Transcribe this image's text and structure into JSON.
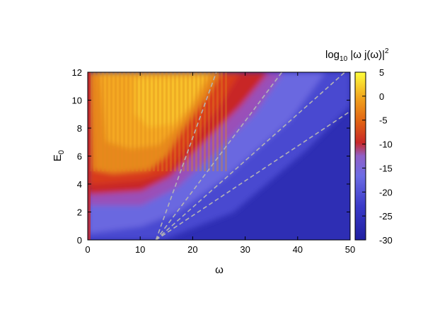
{
  "chart_data": {
    "type": "heatmap",
    "title": "",
    "xlabel": "ω",
    "ylabel_main": "E",
    "ylabel_sub": "0",
    "xlim": [
      0,
      50
    ],
    "ylim": [
      0,
      12
    ],
    "x_ticks": [
      "0",
      "10",
      "20",
      "30",
      "40",
      "50"
    ],
    "y_ticks": [
      "0",
      "2",
      "4",
      "6",
      "8",
      "10",
      "12"
    ],
    "colorbar": {
      "label_prefix": "log",
      "label_sub": "10",
      "label_body": " |ω j(ω)|",
      "label_sup": "2",
      "range": [
        -30,
        5
      ],
      "ticks": [
        "5",
        "0",
        "-5",
        "-10",
        "-15",
        "-20",
        "-25",
        "-30"
      ],
      "palette": [
        "#1f1f9f",
        "#3c3cc8",
        "#6a6ae0",
        "#8a6ad8",
        "#c82a2a",
        "#e05a14",
        "#f09a1c",
        "#f8c82a",
        "#ffff3c"
      ]
    },
    "dashed_lines": {
      "origin": [
        13,
        0
      ],
      "end_points": [
        [
          24.5,
          12
        ],
        [
          37,
          12
        ],
        [
          49,
          12
        ],
        [
          50,
          9.2
        ]
      ],
      "color": "#b4b4b4"
    },
    "regions": [
      {
        "name": "high-intensity",
        "approx_log_value": 2
      },
      {
        "name": "transition",
        "approx_log_value": -8
      },
      {
        "name": "background-low",
        "approx_log_value": -22
      }
    ]
  }
}
